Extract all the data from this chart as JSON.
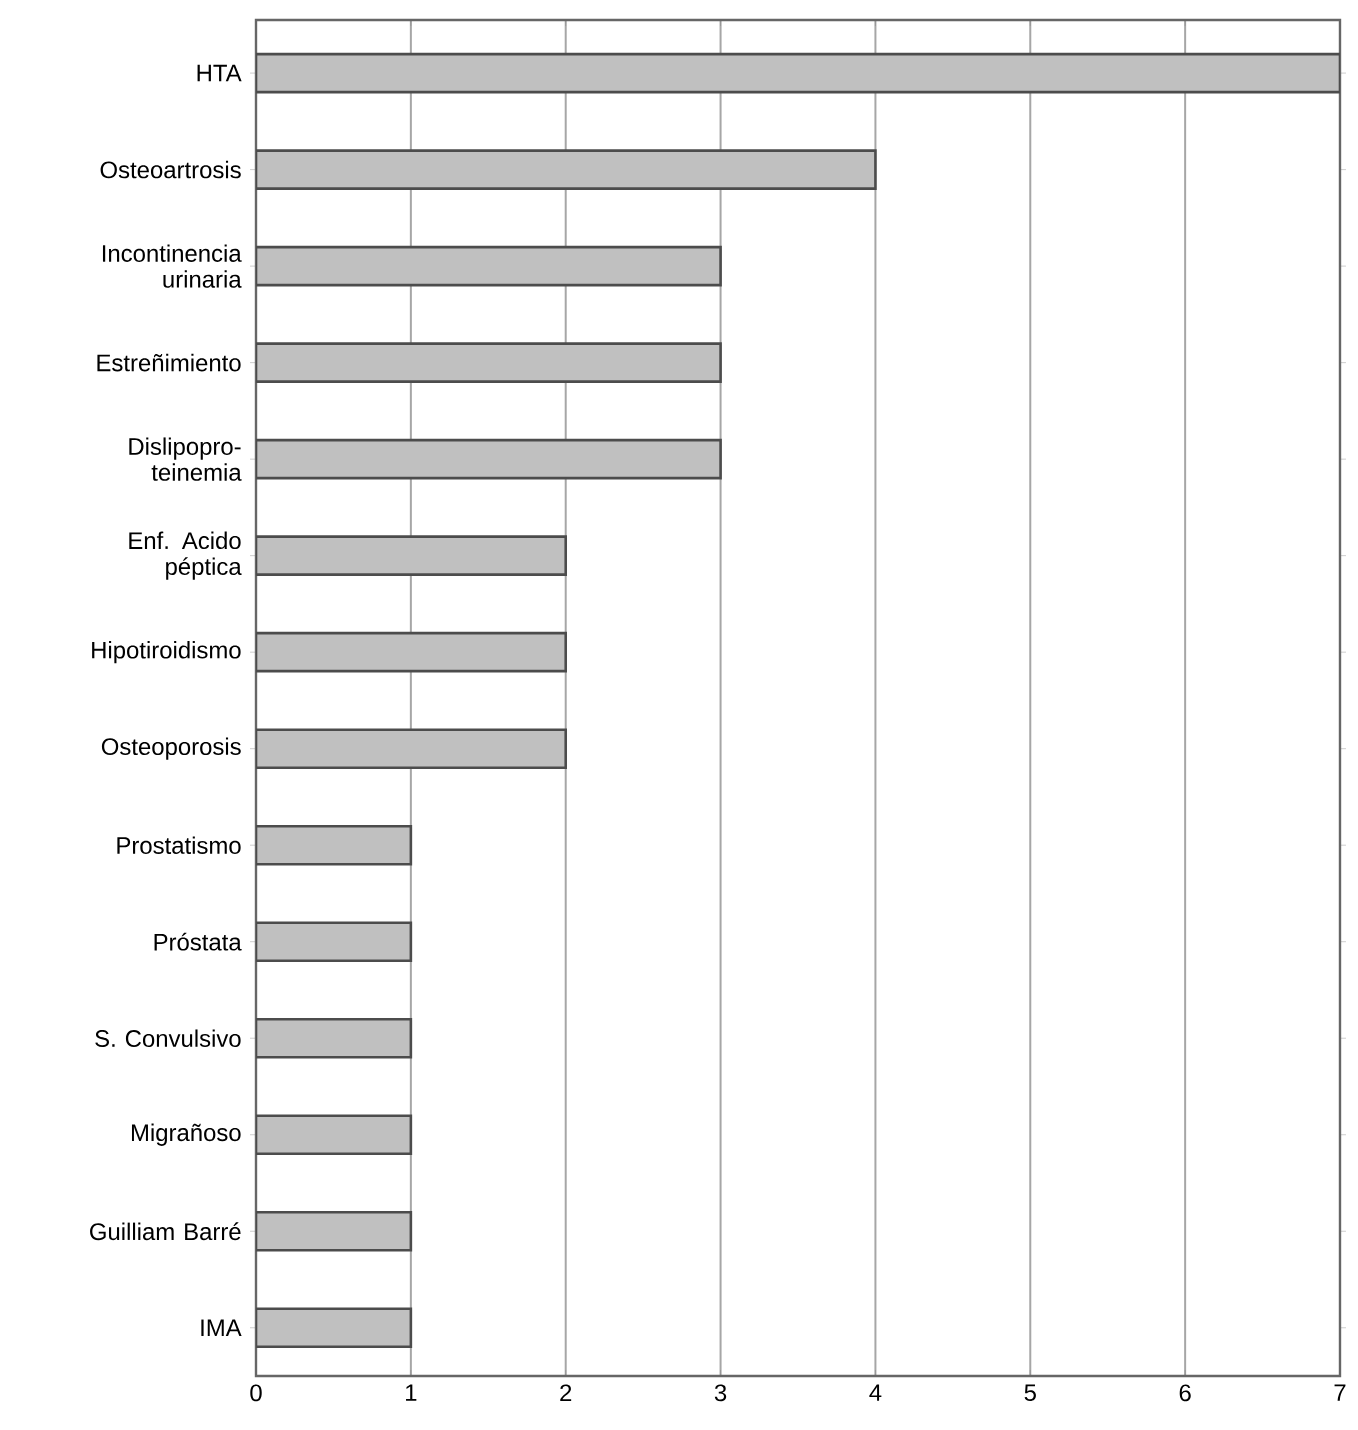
{
  "chart_data": {
    "type": "bar",
    "orientation": "horizontal",
    "categories": [
      "HTA",
      "Osteoartrosis",
      "Incontinencia urinaria",
      "Estreñimiento",
      "Dislipopro-teinemia",
      "Enf. Acido péptica",
      "Hipotiroidismo",
      "Osteoporosis",
      "Prostatismo",
      "Próstata",
      "S. Convulsivo",
      "Migrañoso",
      "Guilliam Barré",
      "IMA"
    ],
    "values": [
      7,
      4,
      3,
      3,
      3,
      2,
      2,
      2,
      1,
      1,
      1,
      1,
      1,
      1
    ],
    "color": "#c0c0c0",
    "xlim": [
      0,
      7
    ],
    "xticks": [
      0,
      1,
      2,
      3,
      4,
      5,
      6,
      7
    ],
    "grid": "x"
  }
}
